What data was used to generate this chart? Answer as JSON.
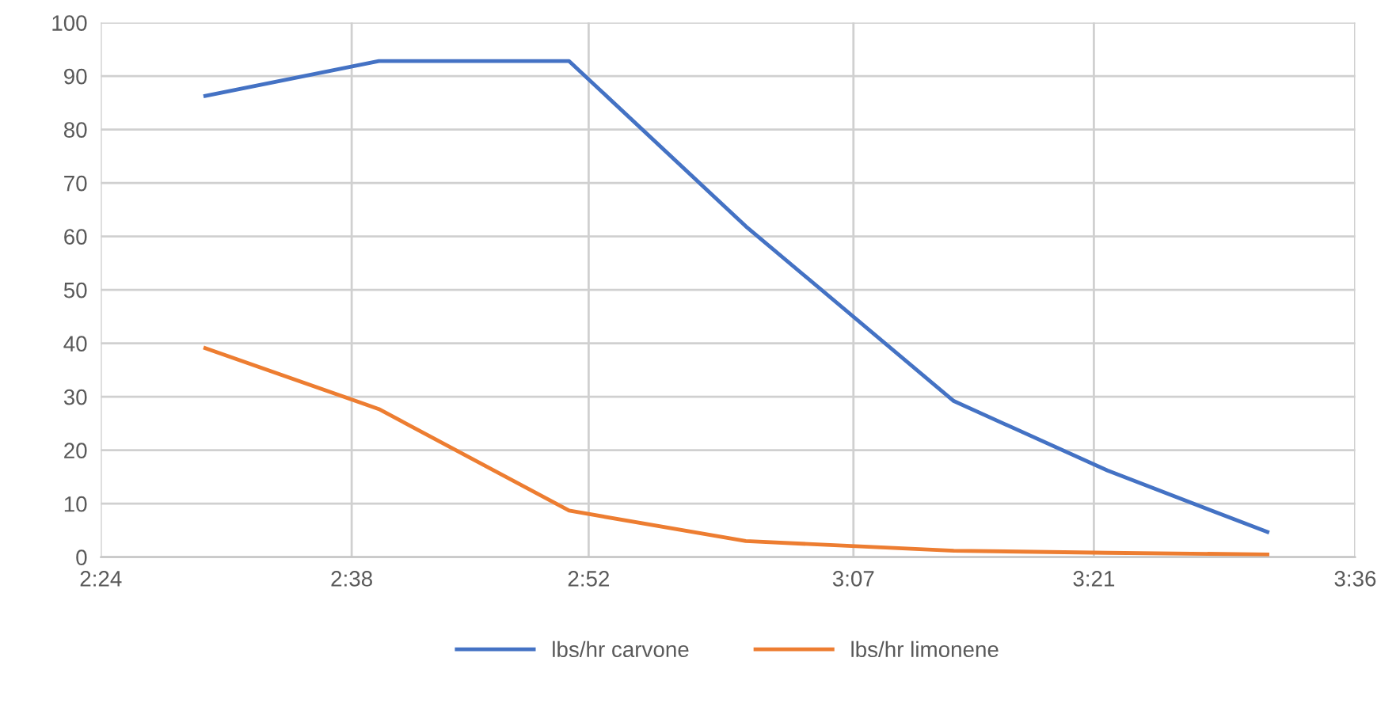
{
  "chart_data": {
    "type": "line",
    "x": [
      2.5,
      2.666,
      2.848,
      3.017,
      3.216,
      3.363,
      3.516
    ],
    "series": [
      {
        "name": "lbs/hr carvone",
        "color": "#4472c4",
        "values": [
          86.3,
          92.8,
          92.8,
          61.9,
          29.2,
          16.2,
          4.7
        ]
      },
      {
        "name": "lbs/hr limonene",
        "color": "#ed7d31",
        "values": [
          39.1,
          27.7,
          8.7,
          3.0,
          1.2,
          0.8,
          0.5
        ]
      }
    ],
    "xlim": [
      2.4,
      3.6
    ],
    "xticks": [
      {
        "value": 2.4,
        "label": "2:24"
      },
      {
        "value": 2.64,
        "label": "2:38"
      },
      {
        "value": 2.8667,
        "label": "2:52"
      },
      {
        "value": 3.12,
        "label": "3:07"
      },
      {
        "value": 3.35,
        "label": "3:21"
      },
      {
        "value": 3.6,
        "label": "3:36"
      }
    ],
    "ylim": [
      0,
      100
    ],
    "yticks": [
      0,
      10,
      20,
      30,
      40,
      50,
      60,
      70,
      80,
      90,
      100
    ],
    "grid": true,
    "legend": "bottom",
    "marker": "none",
    "line_style": "solid"
  }
}
